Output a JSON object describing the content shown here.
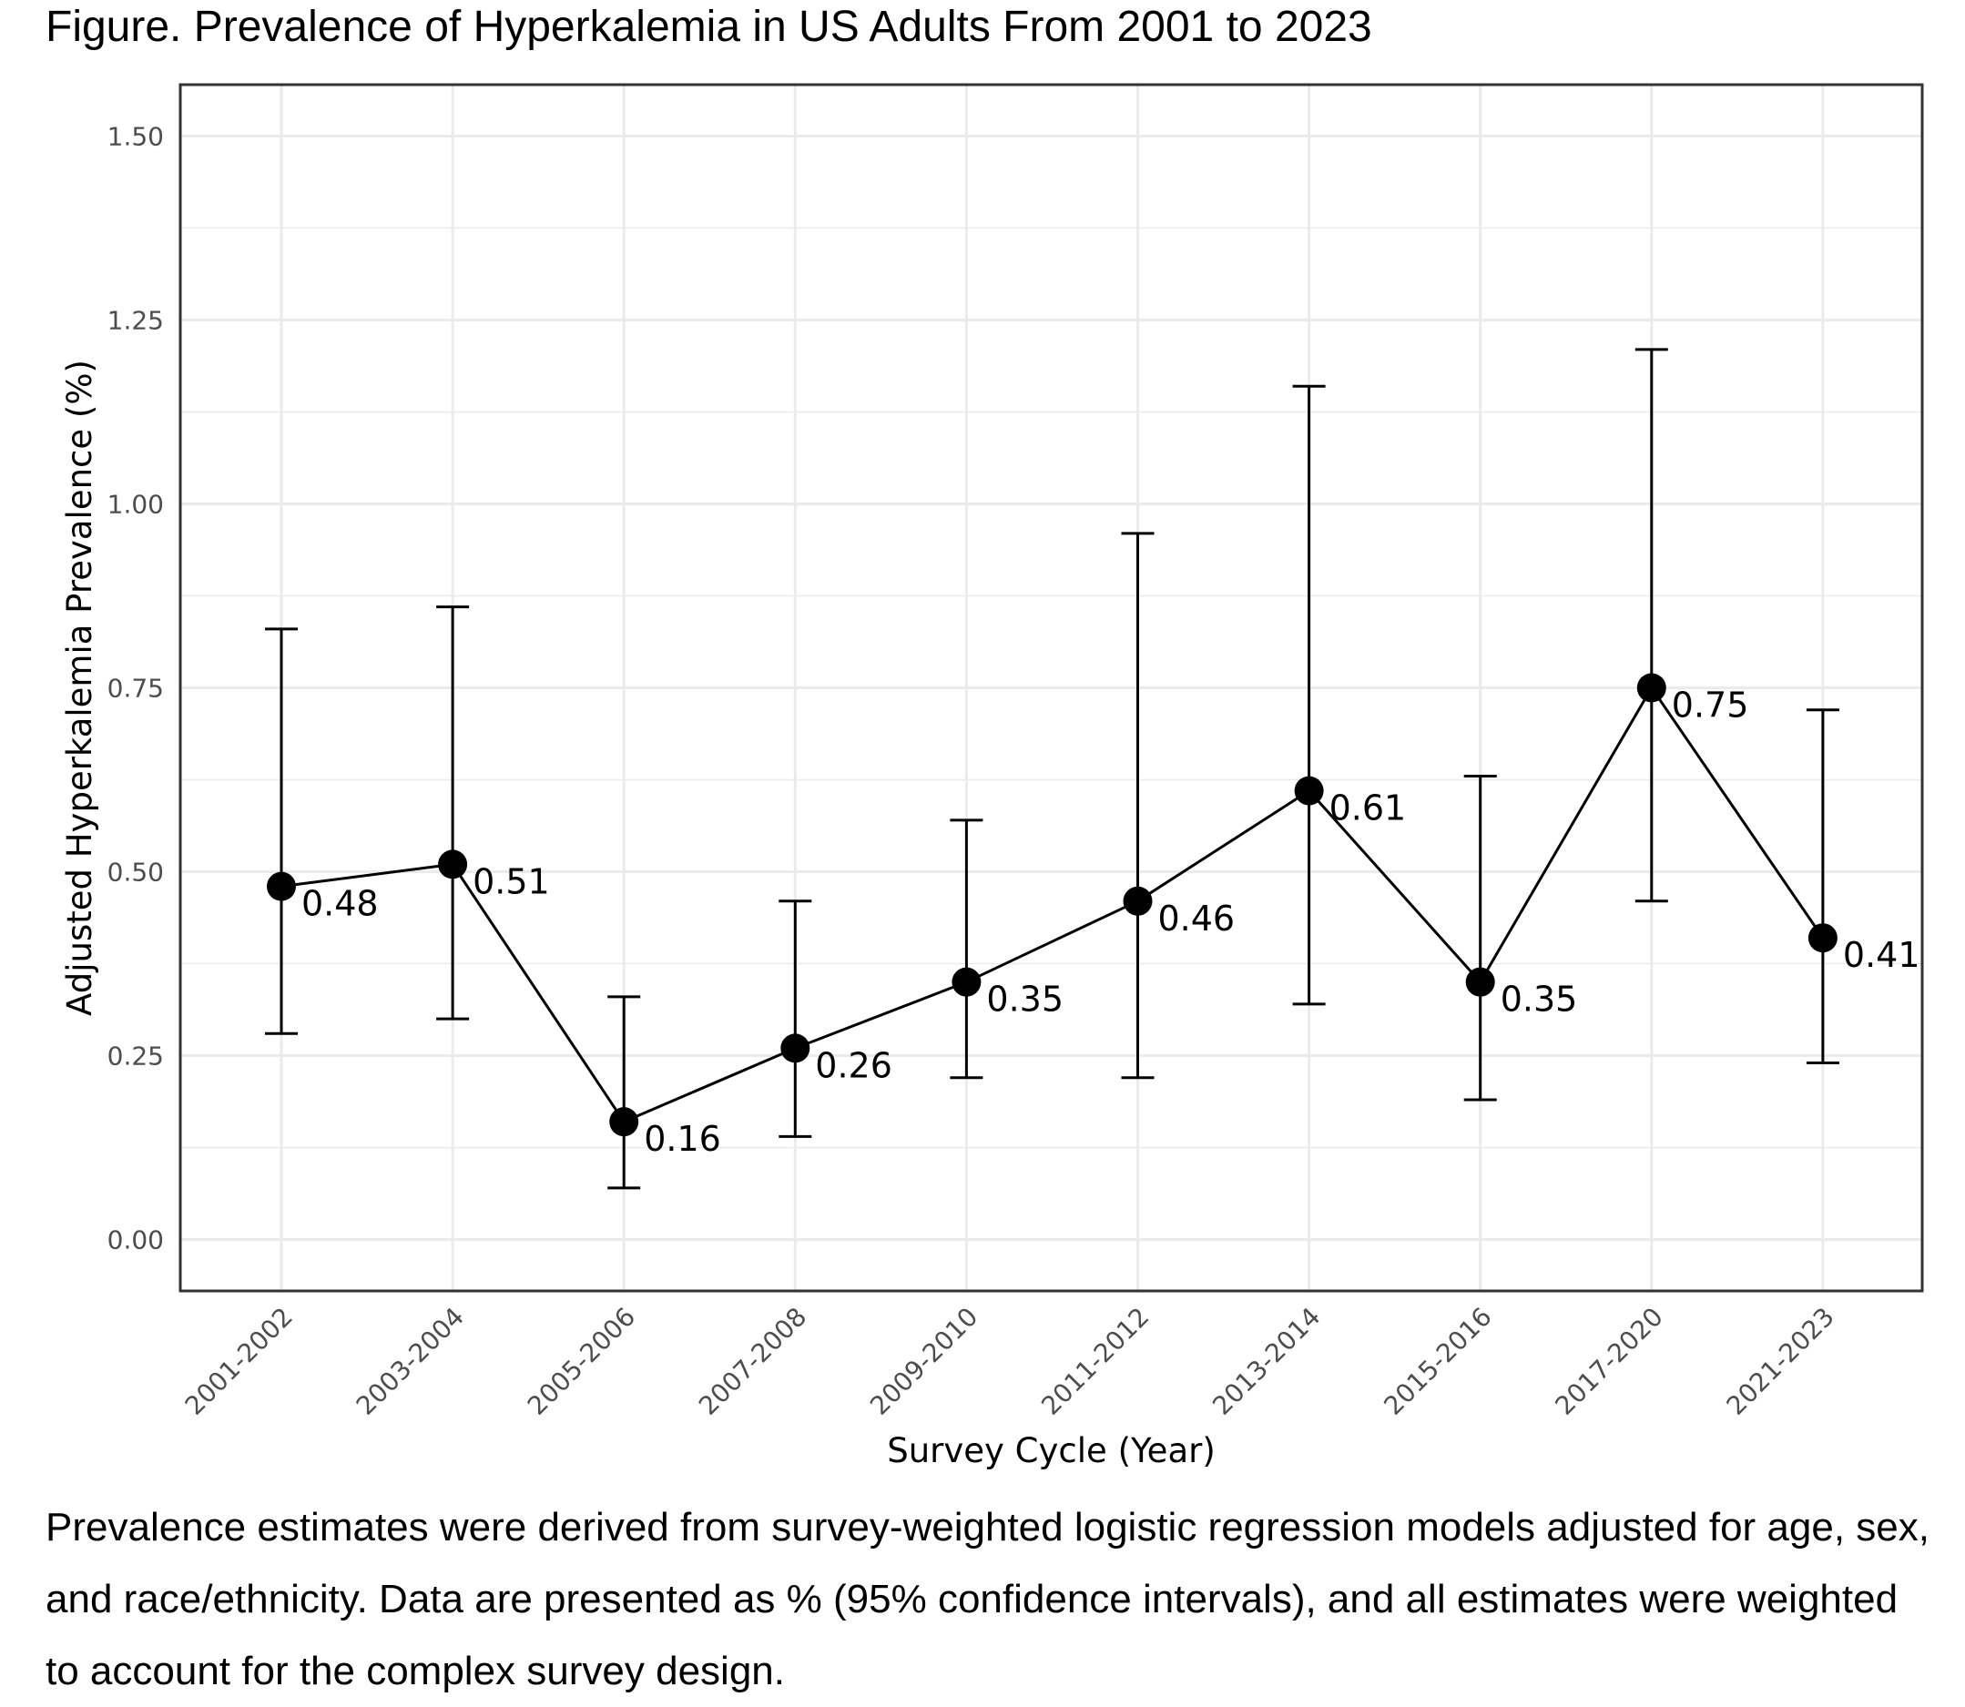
{
  "figure_title": "Figure. Prevalence of Hyperkalemia in US Adults From 2001 to 2023",
  "caption": "Prevalence estimates were derived from survey-weighted logistic regression models adjusted for age, sex, and race/ethnicity. Data are presented as % (95% confidence intervals), and all estimates were weighted to account for the complex survey design.",
  "chart_data": {
    "type": "line",
    "title": "",
    "xlabel": "Survey Cycle (Year)",
    "ylabel": "Adjusted Hyperkalemia Prevalence (%)",
    "ylim": [
      -0.07,
      1.57
    ],
    "y_ticks": [
      0.0,
      0.25,
      0.5,
      0.75,
      1.0,
      1.25,
      1.5
    ],
    "y_tick_labels": [
      "0.00",
      "0.25",
      "0.50",
      "0.75",
      "1.00",
      "1.25",
      "1.50"
    ],
    "grid": true,
    "categories": [
      "2001-2002",
      "2003-2004",
      "2005-2006",
      "2007-2008",
      "2009-2010",
      "2011-2012",
      "2013-2014",
      "2015-2016",
      "2017-2020",
      "2021-2023"
    ],
    "values": [
      0.48,
      0.51,
      0.16,
      0.26,
      0.35,
      0.46,
      0.61,
      0.35,
      0.75,
      0.41
    ],
    "ci_lower": [
      0.28,
      0.3,
      0.07,
      0.14,
      0.22,
      0.22,
      0.32,
      0.19,
      0.46,
      0.24
    ],
    "ci_upper": [
      0.83,
      0.86,
      0.33,
      0.46,
      0.57,
      0.96,
      1.16,
      0.63,
      1.21,
      0.72
    ],
    "data_labels": [
      "0.48",
      "0.51",
      "0.16",
      "0.26",
      "0.35",
      "0.46",
      "0.61",
      "0.35",
      "0.75",
      "0.41"
    ],
    "colors": {
      "line": "#000000",
      "point": "#000000",
      "grid": "#ebebeb",
      "border": "#333333"
    }
  }
}
